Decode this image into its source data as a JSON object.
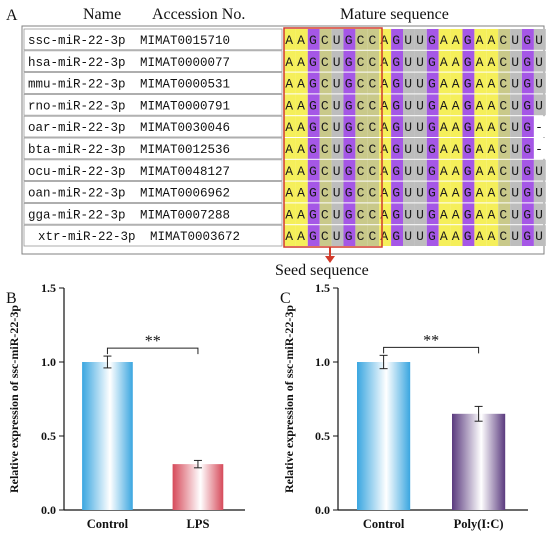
{
  "panelA": {
    "label": "A",
    "header_name": "Name",
    "header_accession": "Accession No.",
    "header_mature": "Mature sequence",
    "seed_label": "Seed sequence",
    "rows": [
      {
        "name": "ssc-miR-22-3p",
        "accession": "MIMAT0015710",
        "seq": "AAGCUGCCAGUUGAAGAACUGU"
      },
      {
        "name": "hsa-miR-22-3p",
        "accession": "MIMAT0000077",
        "seq": "AAGCUGCCAGUUGAAGAACUGU"
      },
      {
        "name": "mmu-miR-22-3p",
        "accession": "MIMAT0000531",
        "seq": "AAGCUGCCAGUUGAAGAACUGU"
      },
      {
        "name": "rno-miR-22-3p",
        "accession": "MIMAT0000791",
        "seq": "AAGCUGCCAGUUGAAGAACUGU"
      },
      {
        "name": "oar-miR-22-3p",
        "accession": "MIMAT0030046",
        "seq": "AAGCUGCCAGUUGAAGAACUG-"
      },
      {
        "name": "bta-miR-22-3p",
        "accession": "MIMAT0012536",
        "seq": "AAGCUGCCAGUUGAAGAACUG-"
      },
      {
        "name": "ocu-miR-22-3p",
        "accession": "MIMAT0048127",
        "seq": "AAGCUGCCAGUUGAAGAACUGU"
      },
      {
        "name": "oan-miR-22-3p",
        "accession": "MIMAT0006962",
        "seq": "AAGCUGCCAGUUGAAGAACUGU"
      },
      {
        "name": "gga-miR-22-3p",
        "accession": "MIMAT0007288",
        "seq": "AAGCUGCCAGUUGAAGAACUGU"
      },
      {
        "name": "xtr-miR-22-3p",
        "accession": "MIMAT0003672",
        "seq": "AAGCUGCCAGUUGAAGAACUGU"
      }
    ],
    "nucleotide_colors": {
      "A": "#f5ef5a",
      "G": "#a557e6",
      "C": "#c9c98a",
      "U": "#bdbdbd",
      "-": "#ffffff"
    },
    "seed_box_color": "#d23a2a"
  },
  "chart_data": [
    {
      "type": "bar",
      "panel_label": "B",
      "categories": [
        "Control",
        "LPS"
      ],
      "values": [
        1.0,
        0.31
      ],
      "errors": [
        0.04,
        0.025
      ],
      "ylabel": "Relative expression of ssc-miR-22-3p",
      "ylim": [
        0,
        1.5
      ],
      "yticks": [
        "0.0",
        "0.5",
        "1.0",
        "1.5"
      ],
      "significance": "**",
      "bar_colors": [
        "#3aa6e0",
        "#d64a5a"
      ]
    },
    {
      "type": "bar",
      "panel_label": "C",
      "categories": [
        "Control",
        "Poly(I:C)"
      ],
      "values": [
        1.0,
        0.65
      ],
      "errors": [
        0.045,
        0.05
      ],
      "ylabel": "Relative  expression of ssc-miR-22-3p",
      "ylim": [
        0,
        1.5
      ],
      "yticks": [
        "0.0",
        "0.5",
        "1.0",
        "1.5"
      ],
      "significance": "**",
      "bar_colors": [
        "#3aa6e0",
        "#5a3a7e"
      ]
    }
  ]
}
